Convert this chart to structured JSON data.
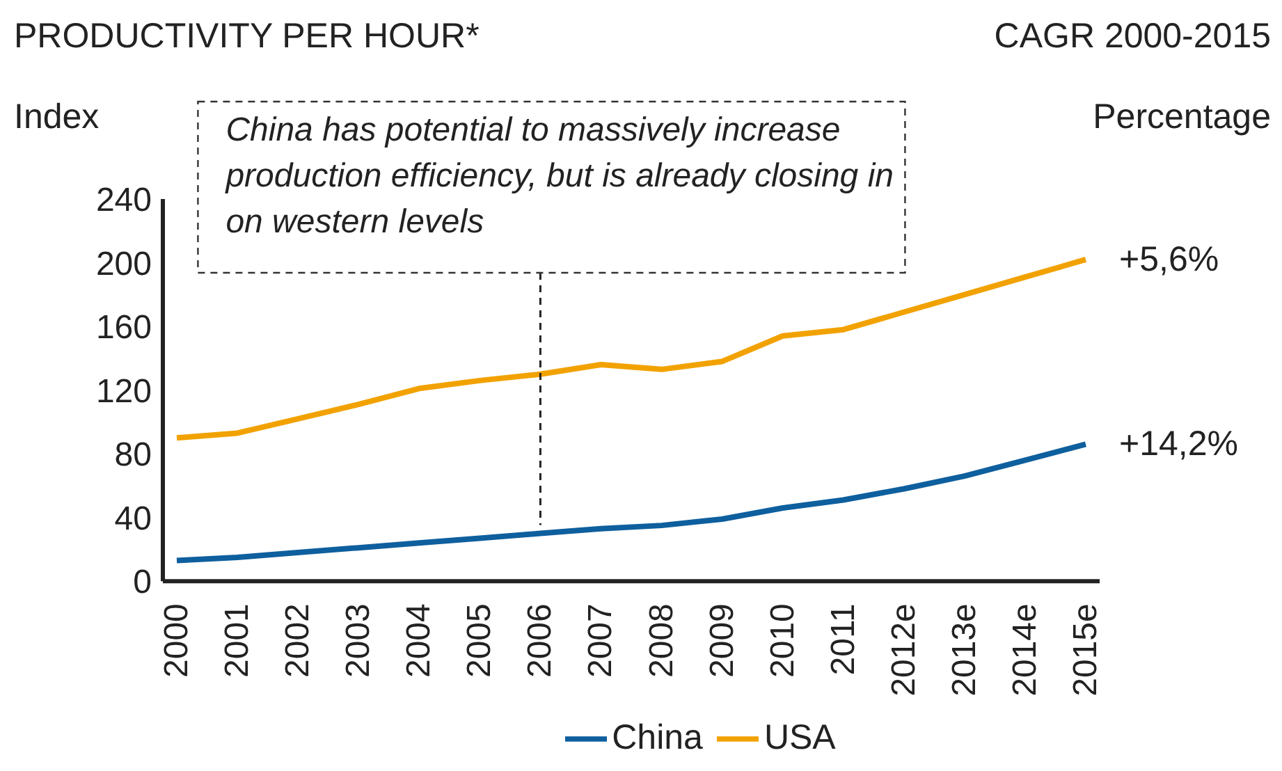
{
  "chart_data": {
    "type": "line",
    "title": "PRODUCTIVITY PER HOUR*",
    "ylabel": "Index",
    "categories": [
      "2000",
      "2001",
      "2002",
      "2003",
      "2004",
      "2005",
      "2006",
      "2007",
      "2008",
      "2009",
      "2010",
      "2011",
      "2012e",
      "2013e",
      "2014e",
      "2015e"
    ],
    "series": [
      {
        "name": "USA",
        "color": "#f2a200",
        "values": [
          90,
          93,
          102,
          111,
          121,
          126,
          130,
          136,
          133,
          138,
          154,
          158,
          169,
          180,
          191,
          202
        ]
      },
      {
        "name": "China",
        "color": "#0e5f9e",
        "values": [
          13,
          15,
          18,
          21,
          24,
          27,
          30,
          33,
          35,
          39,
          46,
          51,
          58,
          66,
          76,
          86
        ]
      }
    ],
    "ylim": [
      0,
      240
    ],
    "yticks": [
      0,
      40,
      80,
      120,
      160,
      200,
      240
    ],
    "legend": "bottom",
    "annotations": [
      "CAGR 2000-2015",
      "Percentage",
      {
        "text": "China has potential to massively increase production efficiency, but is already closing in on western levels",
        "x": "2006",
        "y": 30
      },
      {
        "text": "+5,6%",
        "x": "2015e",
        "y": 202
      },
      {
        "text": "+14,2%",
        "x": "2015e",
        "y": 86
      }
    ]
  }
}
